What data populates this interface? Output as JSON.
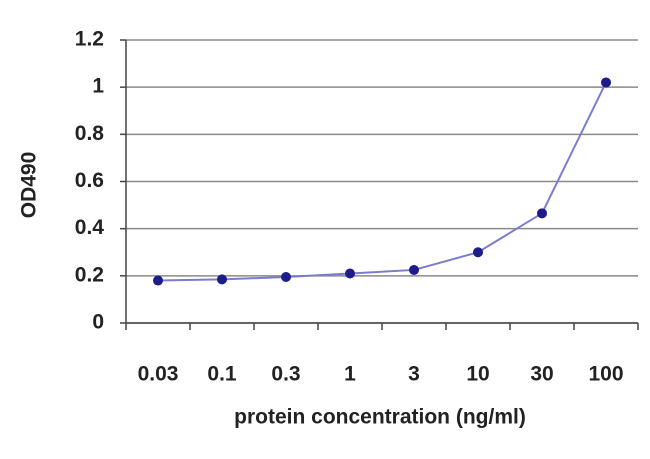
{
  "chart_data": {
    "type": "line",
    "x_label": "protein concentration (ng/ml)",
    "y_label": "OD490",
    "categories": [
      "0.03",
      "0.1",
      "0.3",
      "1",
      "3",
      "10",
      "30",
      "100"
    ],
    "series": [
      {
        "name": "OD490",
        "line_color": "#7c7ccc",
        "marker_color": "#1c1c8a",
        "values": [
          0.18,
          0.185,
          0.195,
          0.21,
          0.225,
          0.3,
          0.465,
          1.02
        ]
      }
    ],
    "ylim": [
      0,
      1.2
    ],
    "yticks": [
      0,
      0.2,
      0.4,
      0.6,
      0.8,
      1,
      1.2
    ],
    "grid": true
  }
}
